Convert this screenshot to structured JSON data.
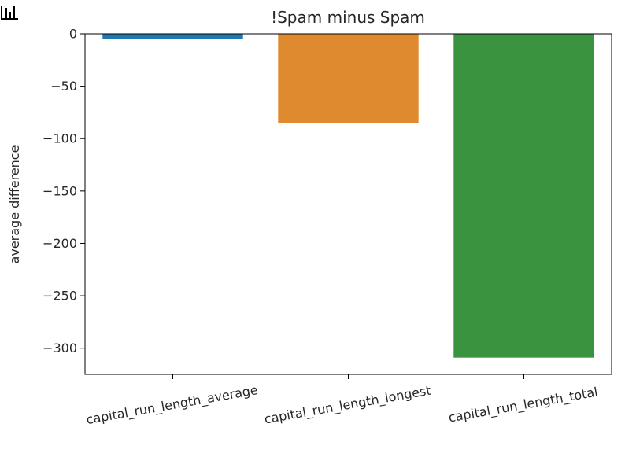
{
  "toolbar": {
    "icon": "bar-chart-icon"
  },
  "colors": {
    "axis": "#000000",
    "text": "#262626",
    "series": [
      "#1f77b4",
      "#e08a30",
      "#3a943f"
    ]
  },
  "chart_data": {
    "type": "bar",
    "title": "!Spam minus Spam",
    "xlabel": "",
    "ylabel": "average difference",
    "categories": [
      "capital_run_length_average",
      "capital_run_length_longest",
      "capital_run_length_total"
    ],
    "values": [
      -4.5,
      -85,
      -309
    ],
    "ylim": [
      -325,
      0
    ],
    "yticks": [
      0,
      -50,
      -100,
      -150,
      -200,
      -250,
      -300
    ],
    "ytick_labels": [
      "0",
      "−50",
      "−100",
      "−150",
      "−200",
      "−250",
      "−300"
    ],
    "grid": false,
    "legend": "none"
  }
}
